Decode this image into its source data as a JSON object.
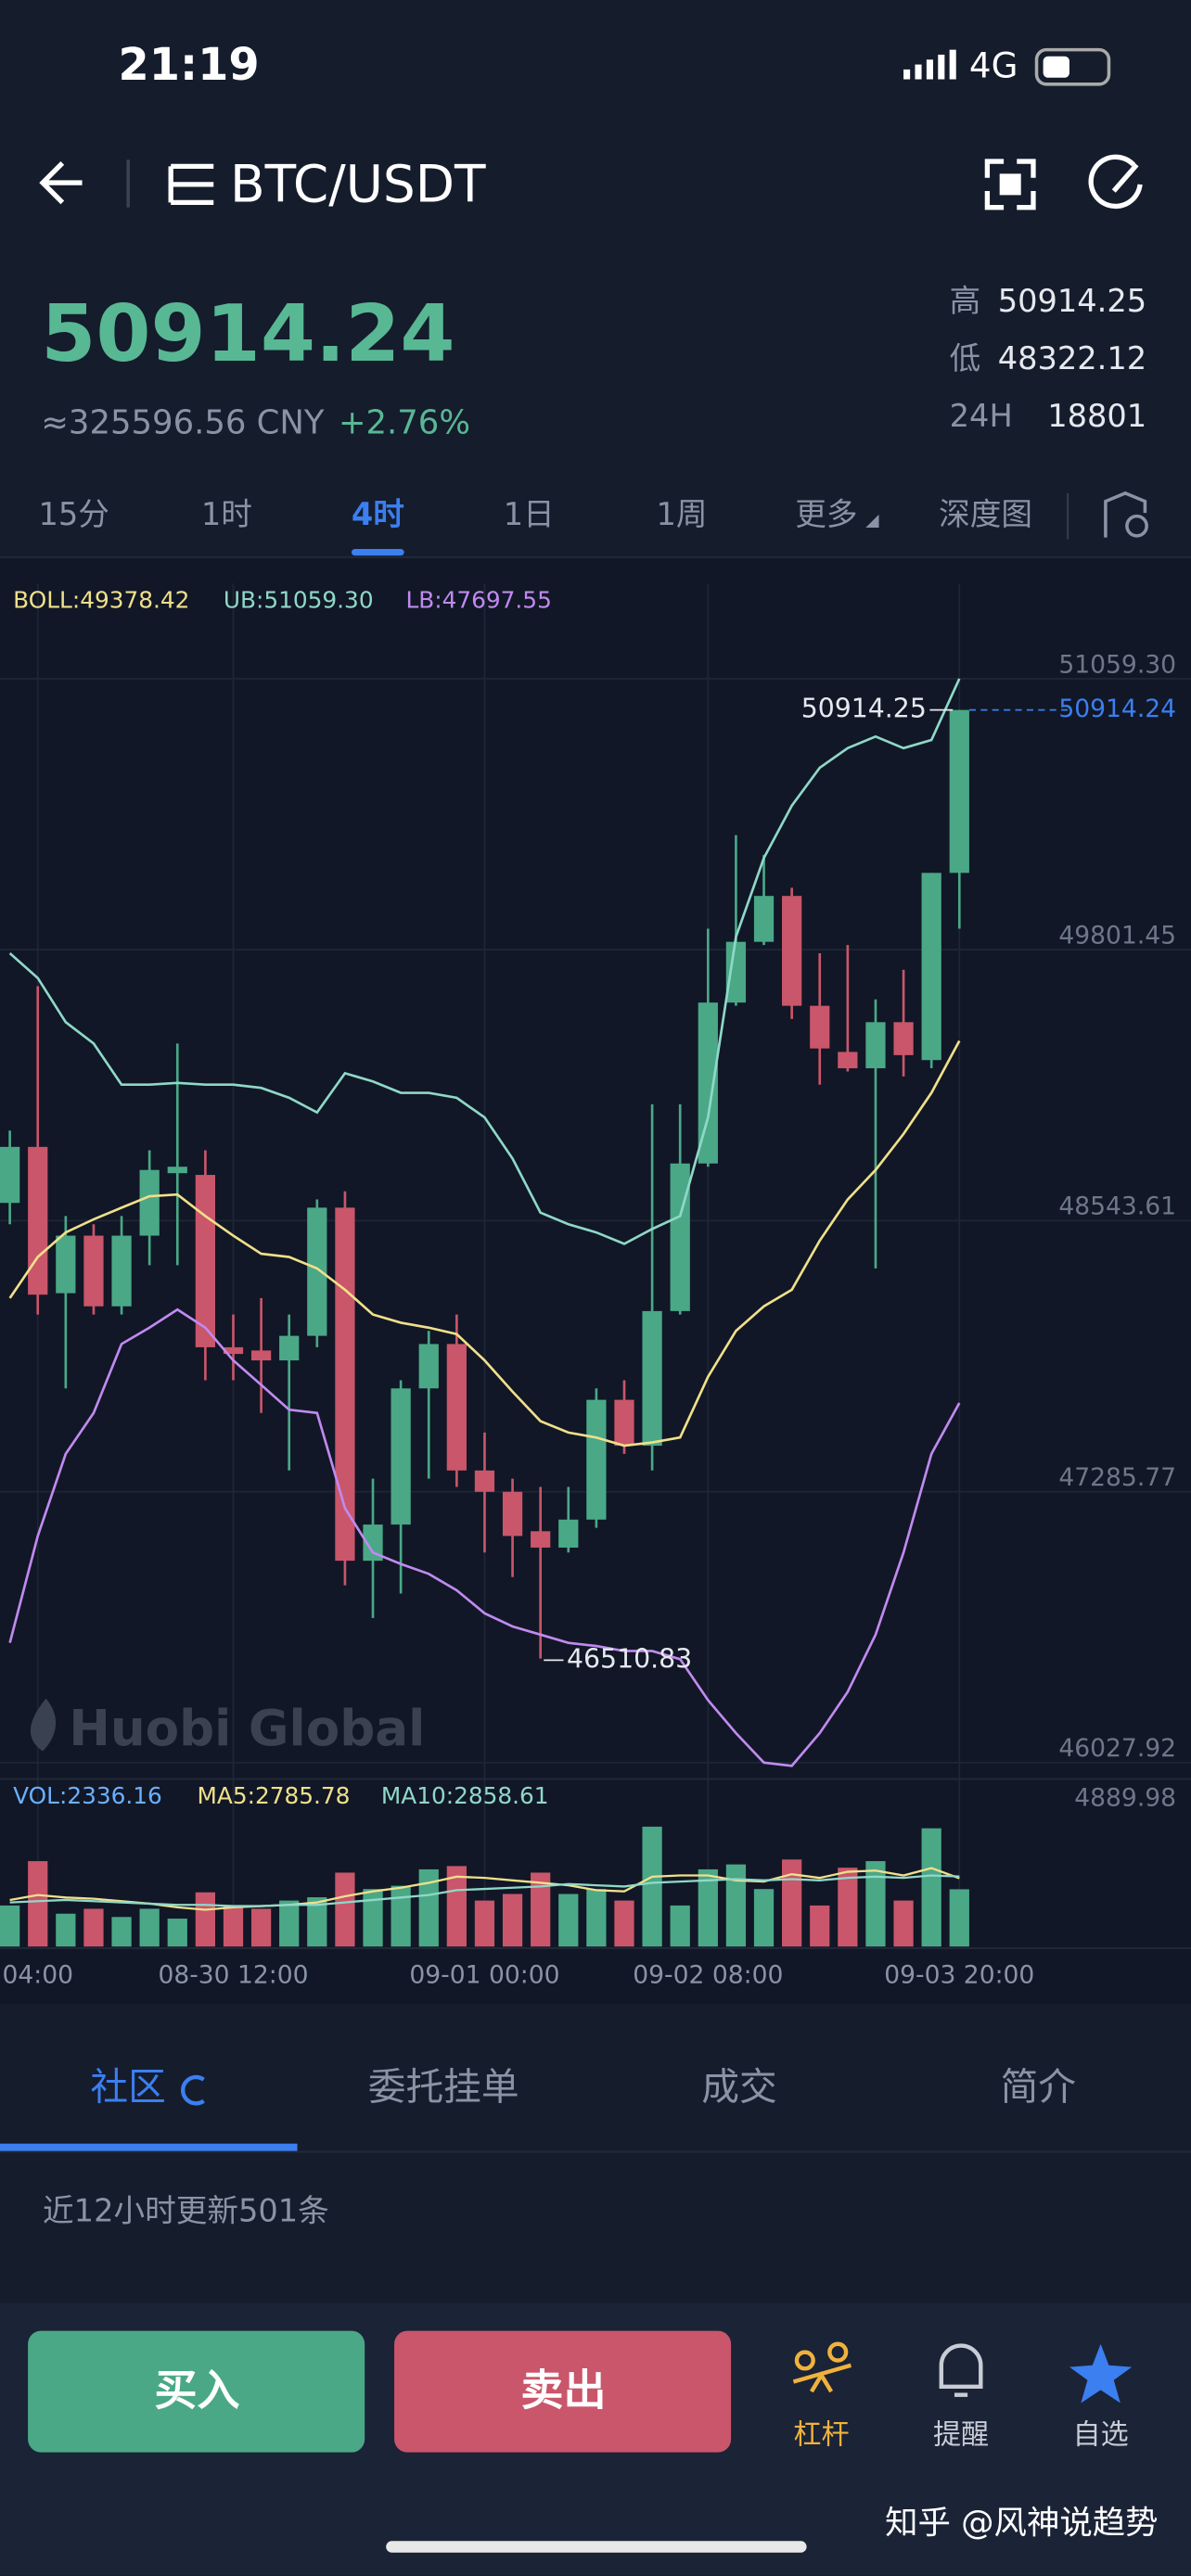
{
  "status_bar": {
    "time": "21:19",
    "network": "4G"
  },
  "header": {
    "pair": "BTC/USDT"
  },
  "ticker": {
    "price": "50914.24",
    "cny": "≈325596.56 CNY",
    "change": "+2.76%",
    "stats": [
      {
        "label": "高",
        "value": "50914.25"
      },
      {
        "label": "低",
        "value": "48322.12"
      },
      {
        "label": "24H",
        "value": "18801"
      }
    ]
  },
  "intervals": {
    "items": [
      "15分",
      "1时",
      "4时",
      "1日",
      "1周",
      "更多",
      "深度图"
    ],
    "active": 2
  },
  "chart_data": [
    {
      "type": "candlestick",
      "up_color": "#4aa887",
      "down_color": "#c9566a",
      "open": [
        48626,
        48886,
        48207,
        48474,
        48146,
        48474,
        48764,
        48756,
        47956,
        47941,
        47895,
        48009,
        48604,
        46965,
        47133,
        47765,
        47971,
        47384,
        47285,
        47102,
        47026,
        47156,
        47712,
        47499,
        48124,
        48809,
        49556,
        49838,
        50051,
        49541,
        49327,
        49251,
        49465,
        49289,
        50158
      ],
      "high": [
        48962,
        49632,
        48565,
        48527,
        48565,
        48870,
        49366,
        48870,
        48108,
        48184,
        48108,
        48642,
        48680,
        47346,
        47803,
        48032,
        48108,
        47560,
        47346,
        47308,
        47308,
        47765,
        47803,
        49084,
        49084,
        49899,
        50333,
        50242,
        50089,
        49785,
        49823,
        49571,
        49708,
        50158,
        50914.25
      ],
      "low": [
        48527,
        48108,
        47765,
        48108,
        48108,
        48337,
        48337,
        47803,
        47803,
        47651,
        47384,
        47956,
        46851,
        46699,
        46813,
        47346,
        47308,
        47003,
        46889,
        46510.83,
        47003,
        47118,
        47461,
        47384,
        48108,
        48794,
        49541,
        49823,
        49480,
        49175,
        49236,
        48322.12,
        49213,
        49251,
        49899
      ],
      "close": [
        48886,
        48200,
        48474,
        48146,
        48474,
        48779,
        48794,
        47956,
        47925,
        47895,
        48009,
        48604,
        46965,
        47133,
        47765,
        47971,
        47384,
        47285,
        47080,
        47026,
        47156,
        47712,
        47499,
        48124,
        48809,
        49556,
        49838,
        50051,
        49541,
        49343,
        49251,
        49465,
        49312,
        50158,
        50914.24
      ],
      "ylim": [
        46027.92,
        51059.3
      ],
      "yticks": [
        {
          "value": 51059.3,
          "label": "51059.30"
        },
        {
          "value": 49801.45,
          "label": "49801.45"
        },
        {
          "value": 48543.61,
          "label": "48543.61"
        },
        {
          "value": 47285.77,
          "label": "47285.77"
        },
        {
          "value": 46027.92,
          "label": "46027.92"
        }
      ],
      "overlays": [
        {
          "name": "BOLL",
          "legend_label": "BOLL:49378.42",
          "color": "#f0e08a",
          "values": [
            48184,
            48375,
            48489,
            48550,
            48604,
            48657,
            48665,
            48565,
            48474,
            48390,
            48375,
            48322,
            48223,
            48108,
            48070,
            48047,
            48017,
            47895,
            47750,
            47613,
            47560,
            47537,
            47499,
            47514,
            47537,
            47819,
            48032,
            48146,
            48223,
            48451,
            48642,
            48779,
            48946,
            49137,
            49378.42
          ]
        },
        {
          "name": "UB",
          "legend_label": "UB:51059.30",
          "color": "#8fd8c8",
          "values": [
            49785,
            49670,
            49465,
            49366,
            49175,
            49175,
            49183,
            49175,
            49175,
            49160,
            49114,
            49046,
            49228,
            49190,
            49137,
            49137,
            49114,
            49023,
            48832,
            48581,
            48527,
            48489,
            48436,
            48505,
            48565,
            49023,
            49861,
            50227,
            50470,
            50646,
            50737,
            50791,
            50737,
            50775,
            51059.3
          ]
        },
        {
          "name": "LB",
          "legend_label": "LB:47697.55",
          "color": "#c08af0",
          "values": [
            46584,
            47080,
            47461,
            47651,
            47971,
            48047,
            48131,
            48047,
            47895,
            47781,
            47666,
            47651,
            47209,
            47003,
            46950,
            46904,
            46828,
            46721,
            46660,
            46622,
            46584,
            46569,
            46546,
            46546,
            46508,
            46318,
            46165,
            46028,
            46013,
            46165,
            46356,
            46622,
            47003,
            47461,
            47697.55
          ]
        }
      ],
      "watermark": "Huobi Global"
    },
    {
      "type": "bar",
      "legend_label": "VOL:2336.16",
      "values": [
        1675,
        3484,
        1340,
        1541,
        1206,
        1541,
        1139,
        2211,
        1675,
        1541,
        1876,
        2010,
        3015,
        2345,
        2479,
        3149,
        3283,
        1876,
        2144,
        3015,
        2144,
        2345,
        1876,
        4889.98,
        1675,
        3149,
        3350,
        2345,
        3551,
        1675,
        3216,
        3484,
        1876,
        4824,
        2336.16
      ],
      "ylim": [
        0,
        4889.98
      ],
      "yticks": [
        4889.98
      ],
      "categories": [
        null,
        "04:00",
        null,
        null,
        null,
        null,
        null,
        null,
        "08-30 12:00",
        null,
        null,
        null,
        null,
        null,
        null,
        null,
        null,
        "09-01 00:00",
        null,
        null,
        null,
        null,
        null,
        null,
        null,
        "09-02 08:00",
        null,
        null,
        null,
        null,
        null,
        null,
        null,
        null,
        "09-03 20:00"
      ],
      "series": [
        {
          "name": "MA5",
          "legend_label": "MA5:2785.78",
          "color": "#f0e08a",
          "values": [
            1900,
            2100,
            2000,
            1950,
            1850,
            1750,
            1600,
            1500,
            1600,
            1650,
            1700,
            1800,
            2050,
            2250,
            2400,
            2600,
            2850,
            2800,
            2700,
            2600,
            2500,
            2300,
            2250,
            2850,
            2900,
            2900,
            2700,
            2650,
            2950,
            2800,
            3050,
            3100,
            2900,
            3200,
            2785.78
          ]
        },
        {
          "name": "MA10",
          "legend_label": "MA10:2858.61",
          "color": "#8fd8c8",
          "values": [
            1800,
            1850,
            1900,
            1850,
            1800,
            1750,
            1700,
            1700,
            1650,
            1650,
            1700,
            1700,
            1800,
            1900,
            2000,
            2100,
            2300,
            2350,
            2400,
            2450,
            2550,
            2500,
            2450,
            2600,
            2650,
            2700,
            2750,
            2700,
            2750,
            2700,
            2800,
            2850,
            2800,
            2900,
            2858.61
          ]
        }
      ]
    }
  ],
  "tabs": {
    "items": [
      "社区",
      "委托挂单",
      "成交",
      "简介"
    ],
    "active": 0
  },
  "feed": {
    "summary": "近12小时更新501条"
  },
  "actions": {
    "buy": "买入",
    "sell": "卖出",
    "icons": [
      "杠杆",
      "提醒",
      "自选"
    ]
  },
  "watermark": "知乎 @风神说趋势"
}
